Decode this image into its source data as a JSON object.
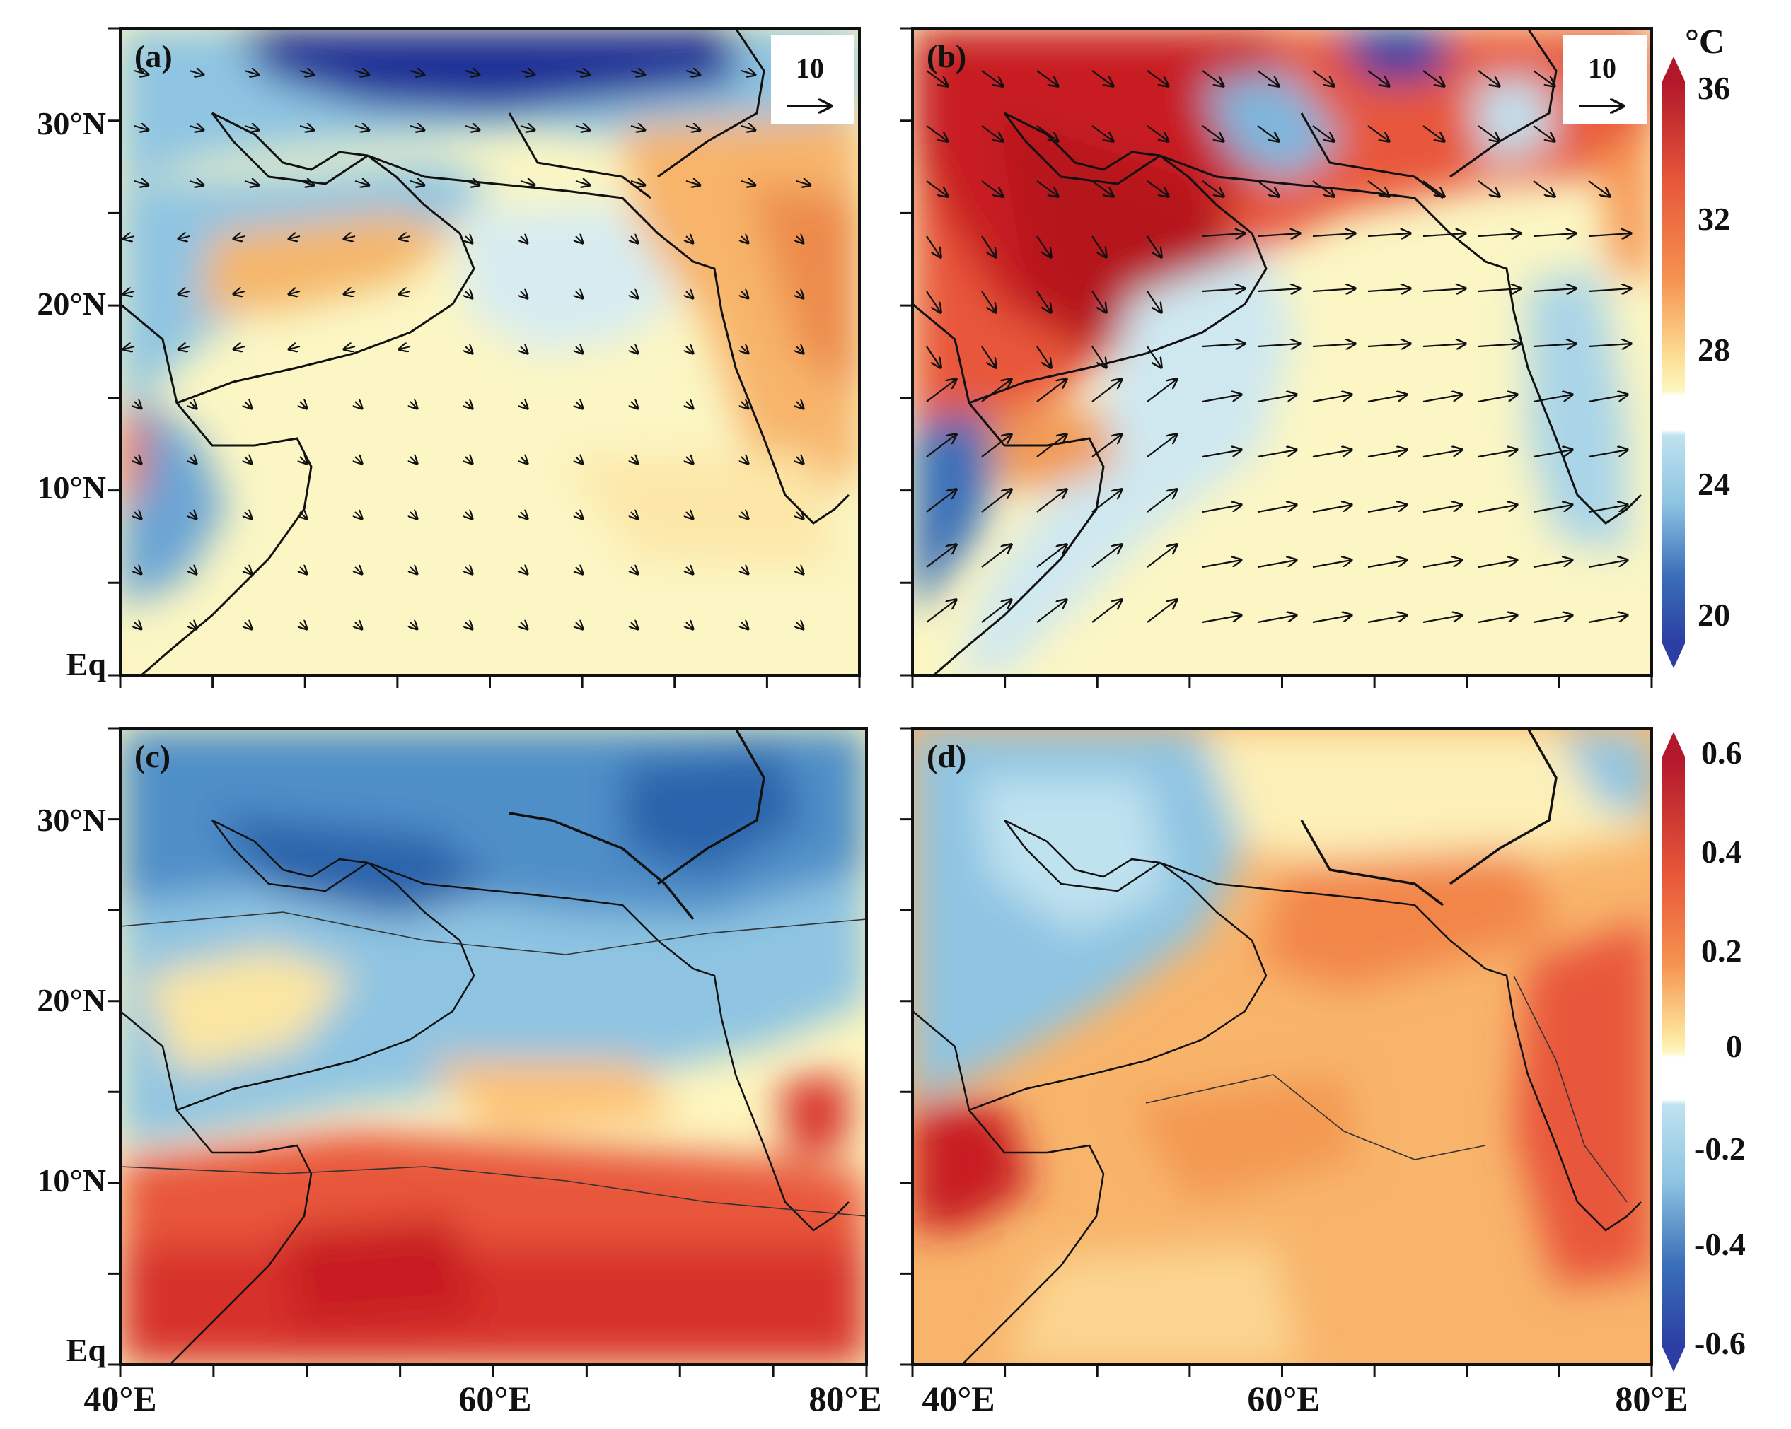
{
  "figure": {
    "x_labels": [
      "40°E",
      "60°E",
      "80°E",
      "40°E",
      "60°E",
      "80°E"
    ],
    "y_labels": [
      "30°N",
      "20°N",
      "10°N",
      "Eq"
    ],
    "panels": [
      {
        "id": "a",
        "label": "(a)",
        "field": "air temperature (°C)",
        "vectors": "wind",
        "vector_key": "10",
        "palette": "temp_a"
      },
      {
        "id": "b",
        "label": "(b)",
        "field": "air temperature (°C)",
        "vectors": "wind",
        "vector_key": "10",
        "palette": "temp_b"
      },
      {
        "id": "c",
        "label": "(c)",
        "field": "anomaly",
        "vectors": "none",
        "palette": "anom_c"
      },
      {
        "id": "d",
        "label": "(d)",
        "field": "anomaly",
        "vectors": "none",
        "palette": "anom_d"
      }
    ],
    "extent": {
      "lon": [
        40,
        80
      ],
      "lat": [
        0,
        35
      ]
    },
    "colorbars": [
      {
        "unit": "°C",
        "ticks": [
          "36",
          "32",
          "28",
          "24",
          "20"
        ],
        "range": [
          20,
          36
        ],
        "extend": "both",
        "colors": [
          "#2c3ea3",
          "#3a6fb8",
          "#5d9ed0",
          "#8ec4e2",
          "#bfe2ef",
          "#ffffff",
          "#fdf6bf",
          "#fde39a",
          "#fdc175",
          "#f6924f",
          "#e8573a",
          "#cf2b2b",
          "#b2172b"
        ]
      },
      {
        "unit": "",
        "ticks": [
          "0.6",
          "0.4",
          "0.2",
          "0",
          "-0.2",
          "-0.4",
          "-0.6"
        ],
        "range": [
          -0.6,
          0.6
        ],
        "extend": "both",
        "colors": [
          "#2c3ea3",
          "#3a6fb8",
          "#5d9ed0",
          "#8ec4e2",
          "#bfe2ef",
          "#ffffff",
          "#fdf6bf",
          "#fde39a",
          "#fdc175",
          "#f6924f",
          "#e8573a",
          "#cf2b2b",
          "#b2172b"
        ]
      }
    ],
    "colors": {
      "dark_blue": "#1f2f96",
      "blue": "#4f8fc8",
      "light_blue": "#bfe2ef",
      "pale_yellow": "#fbf6c4",
      "orange": "#f5a65b",
      "red": "#d7302a",
      "dark_red": "#b5141f"
    }
  }
}
